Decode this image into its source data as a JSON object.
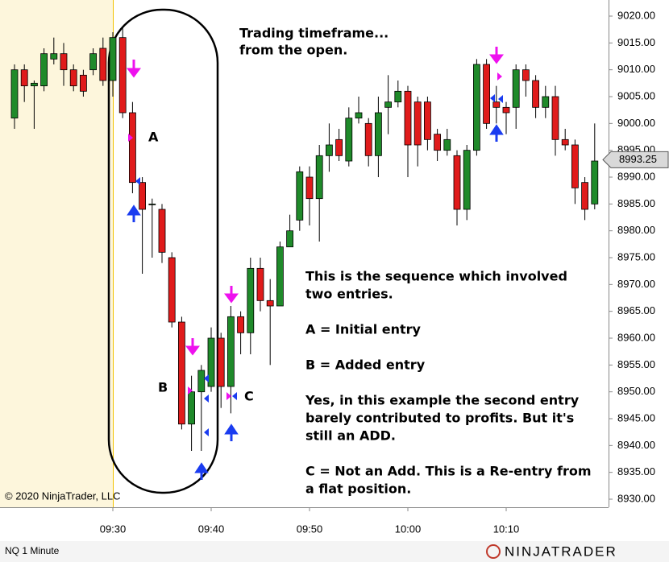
{
  "chart_data": {
    "type": "candlestick",
    "categories": [
      null,
      null,
      null,
      null,
      null,
      null,
      null,
      null,
      null,
      null,
      "09:30",
      null,
      null,
      null,
      null,
      null,
      null,
      null,
      null,
      null,
      "09:40",
      null,
      null,
      null,
      null,
      null,
      null,
      null,
      null,
      null,
      "09:50",
      null,
      null,
      null,
      null,
      null,
      null,
      null,
      null,
      null,
      "10:00",
      null,
      null,
      null,
      null,
      null,
      null,
      null,
      null,
      null,
      "10:10",
      null,
      null,
      null,
      null,
      null,
      null,
      null,
      null,
      null
    ],
    "open": [
      9001,
      9010,
      9007,
      9007,
      9012,
      9013,
      9010,
      9009,
      9010,
      9014,
      9008,
      9016,
      9002,
      8989,
      8985,
      8984,
      8975,
      8963,
      8944,
      8950,
      8951,
      8960,
      8951,
      8964,
      8961,
      8973,
      8967,
      8966,
      8977,
      8982,
      8990,
      8986,
      8994,
      8997,
      8993,
      9001,
      9000,
      8994,
      9003,
      9004,
      9006,
      9004,
      9004,
      8998,
      8995,
      8994,
      8984,
      8995,
      9011,
      9004,
      9003,
      9003,
      9010,
      9008,
      9003,
      9005,
      8997,
      8996,
      8989,
      8985
    ],
    "high": [
      9011,
      9011,
      9008,
      9014,
      9016,
      9015,
      9011,
      9010,
      9014,
      9016,
      9017,
      9018,
      9004,
      8990,
      8986,
      8985,
      8976,
      8964,
      8953,
      8955,
      8962,
      8961,
      8966,
      8965,
      8975,
      8975,
      8971,
      8978,
      8983,
      8992,
      8992,
      8996,
      9000,
      8999,
      9003,
      9005,
      9001,
      9005,
      9009,
      9008,
      9007,
      9005,
      9005,
      8999,
      8999,
      8995,
      8996,
      9012,
      9012,
      9007,
      9004,
      9011,
      9011,
      9009,
      9007,
      9007,
      8999,
      8997,
      8990,
      9000
    ],
    "low": [
      8999,
      9004,
      8999,
      9006,
      9011,
      9007,
      9006,
      9005,
      9009,
      9007,
      9005,
      9001,
      8987,
      8972,
      8975,
      8974,
      8962,
      8943,
      8939,
      8939,
      8950,
      8947,
      8946,
      8957,
      8957,
      8965,
      8955,
      8966,
      8977,
      8980,
      8981,
      8978,
      8991,
      8993,
      8992,
      9000,
      8992,
      8990,
      8998,
      9003,
      8990,
      8992,
      8995,
      8993,
      8994,
      8981,
      8982,
      8994,
      8999,
      9000,
      8998,
      8999,
      9005,
      9001,
      9001,
      8994,
      8995,
      8985,
      8982,
      8984
    ],
    "close": [
      9010,
      9007,
      9007.5,
      9013,
      9013,
      9010,
      9007,
      9006,
      9013,
      9008,
      9016,
      9002,
      8989,
      8984,
      8985,
      8976,
      8963,
      8944,
      8950,
      8954,
      8960,
      8951,
      8964,
      8961,
      8973,
      8967,
      8966,
      8977,
      8980,
      8991,
      8986,
      8994,
      8996,
      8994,
      9001,
      9002,
      8994,
      9002,
      9004,
      9006,
      8996,
      8996,
      8997,
      8995,
      8997,
      8984,
      8995,
      9011,
      9000,
      9003,
      9002,
      9010,
      9008,
      9003,
      9005,
      8997,
      8996,
      8988,
      8984,
      8993
    ],
    "up_color": "#1f8a2a",
    "down_color": "#e01b1b",
    "ylim": [
      8930,
      9020
    ],
    "yticks": [
      {
        "value": 8930,
        "label": "8930.00"
      },
      {
        "value": 8935,
        "label": "8935.00"
      },
      {
        "value": 8940,
        "label": "8940.00"
      },
      {
        "value": 8945,
        "label": "8945.00"
      },
      {
        "value": 8950,
        "label": "8950.00"
      },
      {
        "value": 8955,
        "label": "8955.00"
      },
      {
        "value": 8960,
        "label": "8960.00"
      },
      {
        "value": 8965,
        "label": "8965.00"
      },
      {
        "value": 8970,
        "label": "8970.00"
      },
      {
        "value": 8975,
        "label": "8975.00"
      },
      {
        "value": 8980,
        "label": "8980.00"
      },
      {
        "value": 8985,
        "label": "8985.00"
      },
      {
        "value": 8990,
        "label": "8990.00"
      },
      {
        "value": 8995,
        "label": "8995.00"
      },
      {
        "value": 9000,
        "label": "9000.00"
      },
      {
        "value": 9005,
        "label": "9005.00"
      },
      {
        "value": 9010,
        "label": "9010.00"
      },
      {
        "value": 9015,
        "label": "9015.00"
      },
      {
        "value": 9020,
        "label": "9020.00"
      }
    ],
    "last_price": 8993.25,
    "annotations": [
      "Trading timeframe...",
      "from the open.",
      "A",
      "B",
      "C",
      "This is the sequence which involved",
      "two entries.",
      "A = Initial entry",
      "B = Added entry",
      "Yes, in this example the second entry",
      "barely contributed to profits. But it's",
      "still an ADD.",
      "C = Not an Add. This is a Re-entry from",
      "a flat position."
    ],
    "copyright": "© 2020 NinjaTrader, LLC",
    "instrument": "NQ 1 Minute",
    "logo": "NINJATRADER"
  }
}
